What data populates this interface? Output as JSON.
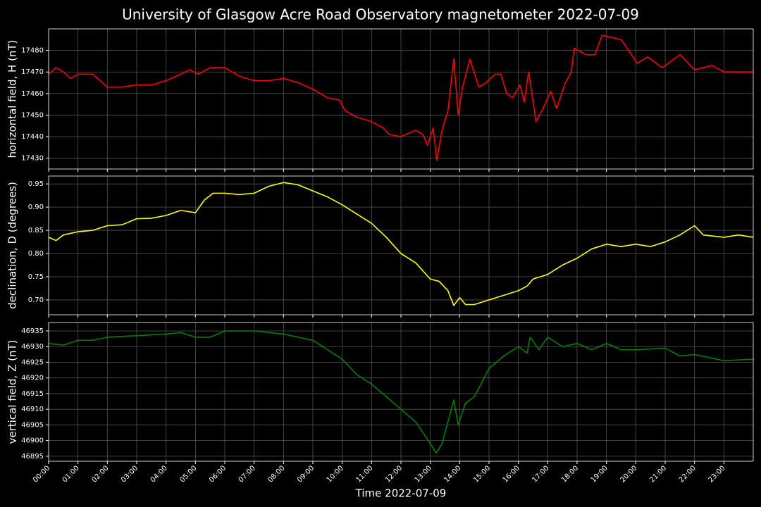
{
  "title": "University of Glasgow Acre Road Observatory magnetometer 2022-07-09",
  "chart_data": [
    {
      "type": "line",
      "ylabel": "horizontal field, H (nT)",
      "color": "#ff0000",
      "grid": true,
      "xlim": [
        0,
        24
      ],
      "xticks": [
        0,
        1,
        2,
        3,
        4,
        5,
        6,
        7,
        8,
        9,
        10,
        11,
        12,
        13,
        14,
        15,
        16,
        17,
        18,
        19,
        20,
        21,
        22,
        23
      ],
      "ylim": [
        17425,
        17490
      ],
      "yticks": [
        17430,
        17440,
        17450,
        17460,
        17470,
        17480
      ],
      "x": [
        0,
        0.25,
        0.5,
        0.75,
        1,
        1.5,
        1.75,
        2,
        2.5,
        3,
        3.5,
        4,
        4.5,
        4.8,
        5.1,
        5.5,
        6,
        6.5,
        7,
        7.5,
        8,
        8.5,
        9,
        9.5,
        9.9,
        10.1,
        10.5,
        11,
        11.4,
        11.6,
        12,
        12.5,
        12.75,
        12.9,
        13.1,
        13.22,
        13.4,
        13.6,
        13.8,
        13.95,
        14.1,
        14.35,
        14.65,
        14.9,
        15.2,
        15.4,
        15.6,
        15.8,
        16.05,
        16.2,
        16.35,
        16.6,
        16.8,
        17.1,
        17.3,
        17.6,
        17.8,
        17.9,
        18.3,
        18.6,
        18.85,
        19.5,
        20.05,
        20.4,
        20.9,
        21.5,
        22,
        22.6,
        23,
        24
      ],
      "values": [
        17469,
        17472,
        17470,
        17467,
        17469,
        17469,
        17466,
        17463,
        17463,
        17464,
        17464,
        17466,
        17469,
        17471,
        17469,
        17472,
        17472,
        17468,
        17466,
        17466,
        17467,
        17465,
        17462,
        17458,
        17457,
        17452,
        17449,
        17447,
        17444,
        17441,
        17440,
        17443,
        17441,
        17436,
        17444,
        17429,
        17443,
        17452,
        17476,
        17450,
        17463,
        17476,
        17463,
        17465,
        17469,
        17469,
        17460,
        17458,
        17464,
        17456,
        17470,
        17447,
        17452,
        17461,
        17453,
        17465,
        17470,
        17481,
        17478,
        17478,
        17487,
        17485,
        17474,
        17477,
        17472,
        17478,
        17471,
        17473,
        17470,
        17470
      ]
    },
    {
      "type": "line",
      "ylabel": "declination, D (degrees)",
      "color": "#ffff00",
      "grid": true,
      "xlim": [
        0,
        24
      ],
      "xticks": [
        0,
        1,
        2,
        3,
        4,
        5,
        6,
        7,
        8,
        9,
        10,
        11,
        12,
        13,
        14,
        15,
        16,
        17,
        18,
        19,
        20,
        21,
        22,
        23
      ],
      "ylim": [
        0.668,
        0.967
      ],
      "yticks": [
        {
          "value": 0.7,
          "label": "0.70"
        },
        0.75,
        {
          "value": 0.8,
          "label": "0.80"
        },
        0.85,
        {
          "value": 0.9,
          "label": "0.90"
        },
        0.95
      ],
      "x": [
        0,
        0.25,
        0.5,
        1,
        1.5,
        2,
        2.5,
        3,
        3.5,
        4,
        4.5,
        5,
        5.3,
        5.6,
        6,
        6.5,
        7,
        7.5,
        8,
        8.5,
        9,
        9.5,
        10,
        10.5,
        11,
        11.5,
        12,
        12.5,
        13,
        13.3,
        13.6,
        13.8,
        14,
        14.2,
        14.5,
        15,
        15.5,
        16,
        16.3,
        16.5,
        17,
        17.5,
        18,
        18.5,
        19,
        19.5,
        20,
        20.5,
        21,
        21.5,
        22,
        22.3,
        23,
        23.5,
        24
      ],
      "values": [
        0.835,
        0.828,
        0.84,
        0.847,
        0.85,
        0.86,
        0.862,
        0.875,
        0.876,
        0.882,
        0.893,
        0.888,
        0.915,
        0.93,
        0.93,
        0.927,
        0.93,
        0.945,
        0.953,
        0.948,
        0.935,
        0.922,
        0.905,
        0.885,
        0.865,
        0.835,
        0.8,
        0.78,
        0.745,
        0.74,
        0.72,
        0.688,
        0.705,
        0.69,
        0.69,
        0.7,
        0.71,
        0.72,
        0.73,
        0.745,
        0.755,
        0.775,
        0.79,
        0.81,
        0.82,
        0.815,
        0.82,
        0.815,
        0.825,
        0.84,
        0.86,
        0.84,
        0.835,
        0.84,
        0.835
      ]
    },
    {
      "type": "line",
      "ylabel": "vertical field, Z (nT)",
      "color": "#008000",
      "grid": true,
      "xlabel": "Time 2022-07-09",
      "xlim": [
        0,
        24
      ],
      "xticks": [
        {
          "value": 0,
          "label": "00:00"
        },
        {
          "value": 1,
          "label": "01:00"
        },
        {
          "value": 2,
          "label": "02:00"
        },
        {
          "value": 3,
          "label": "03:00"
        },
        {
          "value": 4,
          "label": "04:00"
        },
        {
          "value": 5,
          "label": "05:00"
        },
        {
          "value": 6,
          "label": "06:00"
        },
        {
          "value": 7,
          "label": "07:00"
        },
        {
          "value": 8,
          "label": "08:00"
        },
        {
          "value": 9,
          "label": "09:00"
        },
        {
          "value": 10,
          "label": "10:00"
        },
        {
          "value": 11,
          "label": "11:00"
        },
        {
          "value": 12,
          "label": "12:00"
        },
        {
          "value": 13,
          "label": "13:00"
        },
        {
          "value": 14,
          "label": "14:00"
        },
        {
          "value": 15,
          "label": "15:00"
        },
        {
          "value": 16,
          "label": "16:00"
        },
        {
          "value": 17,
          "label": "17:00"
        },
        {
          "value": 18,
          "label": "18:00"
        },
        {
          "value": 19,
          "label": "19:00"
        },
        {
          "value": 20,
          "label": "20:00"
        },
        {
          "value": 21,
          "label": "21:00"
        },
        {
          "value": 22,
          "label": "22:00"
        },
        {
          "value": 23,
          "label": "23:00"
        }
      ],
      "ylim": [
        46893.4,
        46937.7
      ],
      "yticks": [
        46895,
        46900,
        46905,
        46910,
        46915,
        46920,
        46925,
        46930,
        46935
      ],
      "x": [
        0,
        0.5,
        1,
        1.5,
        2,
        3,
        4,
        4.5,
        5,
        5.5,
        6,
        7,
        8,
        9,
        9.5,
        10,
        10.5,
        11,
        11.5,
        12,
        12.5,
        13,
        13.2,
        13.4,
        13.6,
        13.8,
        13.95,
        14.2,
        14.5,
        15,
        15.5,
        16,
        16.3,
        16.4,
        16.7,
        17,
        17.5,
        18,
        18.5,
        19,
        19.5,
        20,
        21,
        21.5,
        22,
        23,
        24
      ],
      "values": [
        46931,
        46930.5,
        46932,
        46932,
        46933,
        46933.5,
        46934,
        46934.5,
        46933,
        46933,
        46935,
        46935,
        46934,
        46932,
        46929,
        46926,
        46921,
        46918,
        46914,
        46910,
        46906,
        46899,
        46896,
        46899,
        46906,
        46913,
        46905,
        46912,
        46914,
        46923,
        46927,
        46930,
        46928,
        46933,
        46929,
        46933,
        46930,
        46931,
        46929,
        46931,
        46929,
        46929,
        46929.5,
        46927,
        46927.5,
        46925.5,
        46926
      ]
    }
  ]
}
